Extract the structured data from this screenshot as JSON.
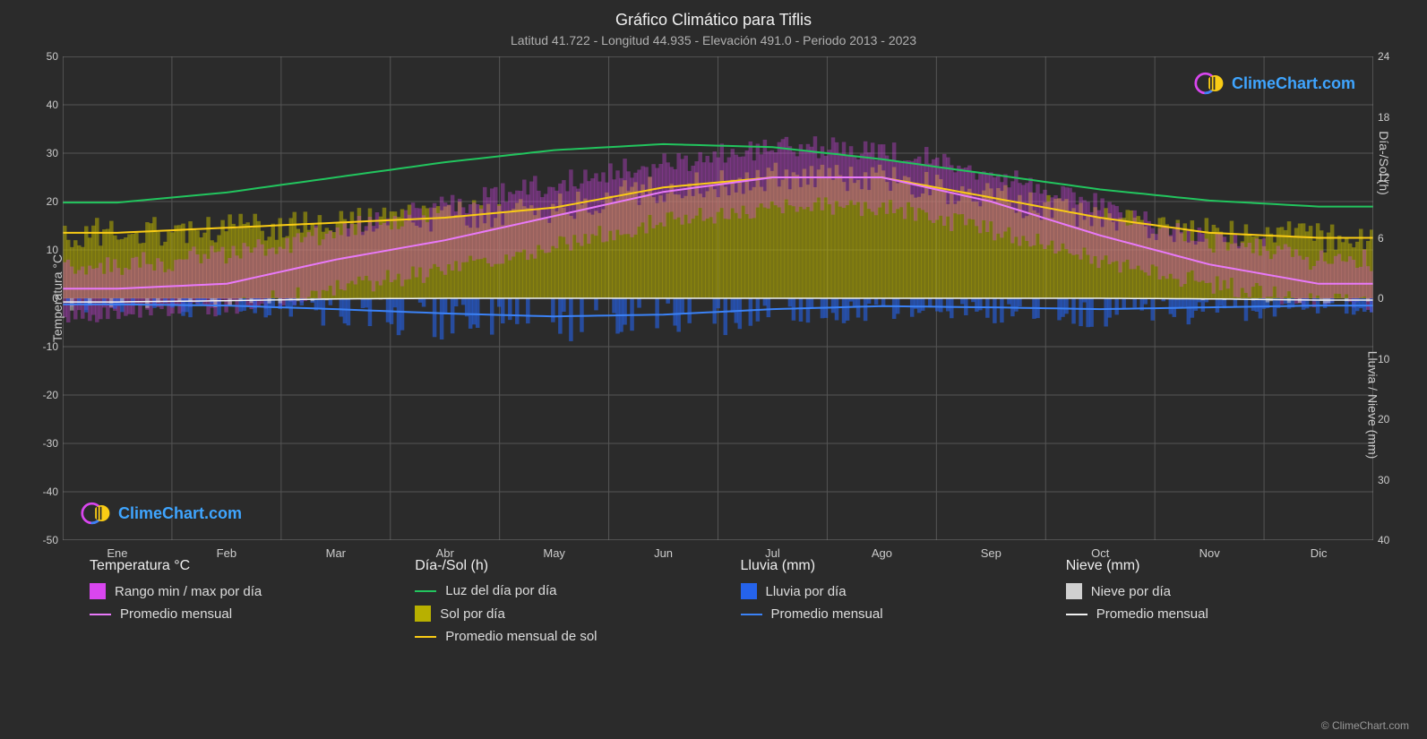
{
  "title": "Gráfico Climático para Tiflis",
  "subtitle": "Latitud 41.722 - Longitud 44.935 - Elevación 491.0 - Periodo 2013 - 2023",
  "axes": {
    "left_label": "Temperatura °C",
    "right_label_top": "Día-/Sol (h)",
    "right_label_bottom": "Lluvia / Nieve (mm)",
    "left_min": -50,
    "left_max": 50,
    "left_step": 10,
    "right_top_min": 0,
    "right_top_max": 24,
    "right_top_step": 6,
    "right_bottom_min": 0,
    "right_bottom_max": 40,
    "right_bottom_step": 10,
    "months": [
      "Ene",
      "Feb",
      "Mar",
      "Abr",
      "May",
      "Jun",
      "Jul",
      "Ago",
      "Sep",
      "Oct",
      "Nov",
      "Dic"
    ]
  },
  "colors": {
    "bg": "#2b2b2b",
    "grid": "#555555",
    "temp_range": "#d946ef",
    "temp_mean_line": "#e879f9",
    "daylight_line": "#22c55e",
    "sun_bars": "#b8b000",
    "sun_mean_line": "#facc15",
    "rain_bars": "#2563eb",
    "rain_mean_line": "#3b82f6",
    "snow_bars": "#d0d0d0",
    "snow_mean_line": "#f0f0f0",
    "legend_text": "#dddddd"
  },
  "series": {
    "months_x": [
      0.042,
      0.125,
      0.208,
      0.292,
      0.375,
      0.458,
      0.542,
      0.625,
      0.708,
      0.792,
      0.875,
      0.958
    ],
    "temp_min": [
      -3,
      -2,
      2,
      6,
      11,
      16,
      19,
      19,
      14,
      8,
      3,
      -1
    ],
    "temp_max": [
      7,
      9,
      14,
      19,
      24,
      28,
      31,
      31,
      26,
      19,
      12,
      8
    ],
    "temp_mean": [
      2,
      3,
      8,
      12,
      17,
      22,
      25,
      25,
      20,
      13,
      7,
      3
    ],
    "daylight_h": [
      9.5,
      10.5,
      12,
      13.5,
      14.7,
      15.3,
      15,
      13.8,
      12.3,
      10.8,
      9.7,
      9.1
    ],
    "sun_mean_h": [
      6.5,
      7,
      7.5,
      8,
      9,
      11,
      12,
      12,
      10,
      8,
      6.5,
      6
    ],
    "rain_mean_mm": [
      1.0,
      1.2,
      1.8,
      2.5,
      3.0,
      2.7,
      1.8,
      1.3,
      1.5,
      1.8,
      1.5,
      1.2
    ],
    "snow_mean_mm": [
      0.6,
      0.4,
      0.1,
      0,
      0,
      0,
      0,
      0,
      0,
      0,
      0.1,
      0.3
    ]
  },
  "legend": {
    "temp_header": "Temperatura °C",
    "temp_range_label": "Rango min / max por día",
    "temp_mean_label": "Promedio mensual",
    "daysun_header": "Día-/Sol (h)",
    "daylight_label": "Luz del día por día",
    "sun_bars_label": "Sol por día",
    "sun_mean_label": "Promedio mensual de sol",
    "rain_header": "Lluvia (mm)",
    "rain_bars_label": "Lluvia por día",
    "rain_mean_label": "Promedio mensual",
    "snow_header": "Nieve (mm)",
    "snow_bars_label": "Nieve por día",
    "snow_mean_label": "Promedio mensual"
  },
  "logo_text": "ClimeChart.com",
  "copyright": "© ClimeChart.com"
}
